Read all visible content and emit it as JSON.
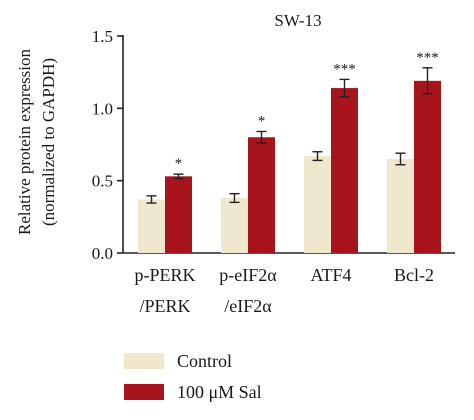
{
  "chart_data": {
    "type": "bar",
    "title": "SW-13",
    "ylabel_line1": "Relative protein expression",
    "ylabel_line2": "(normalized to GAPDH)",
    "xlabel": "",
    "ylim": [
      0,
      1.5
    ],
    "yticks": [
      "0.0",
      "0.5",
      "1.0",
      "1.5"
    ],
    "ytick_values": [
      0,
      0.5,
      1.0,
      1.5
    ],
    "categories": [
      {
        "line1": "p-PERK",
        "line2": "/PERK"
      },
      {
        "line1": "p-eIF2α",
        "line2": "/eIF2α"
      },
      {
        "line1": "ATF4",
        "line2": ""
      },
      {
        "line1": "Bcl-2",
        "line2": ""
      }
    ],
    "series": [
      {
        "name": "Control",
        "color": "#efe8cf",
        "values": [
          0.37,
          0.38,
          0.67,
          0.65
        ],
        "errors": [
          0.025,
          0.03,
          0.03,
          0.04
        ]
      },
      {
        "name": "100 μM Sal",
        "color": "#a8141b",
        "values": [
          0.53,
          0.8,
          1.14,
          1.19
        ],
        "errors": [
          0.015,
          0.04,
          0.06,
          0.09
        ]
      }
    ],
    "significance": [
      "*",
      "*",
      "***",
      "***"
    ],
    "grid": false,
    "legend_position": "bottom-left"
  }
}
